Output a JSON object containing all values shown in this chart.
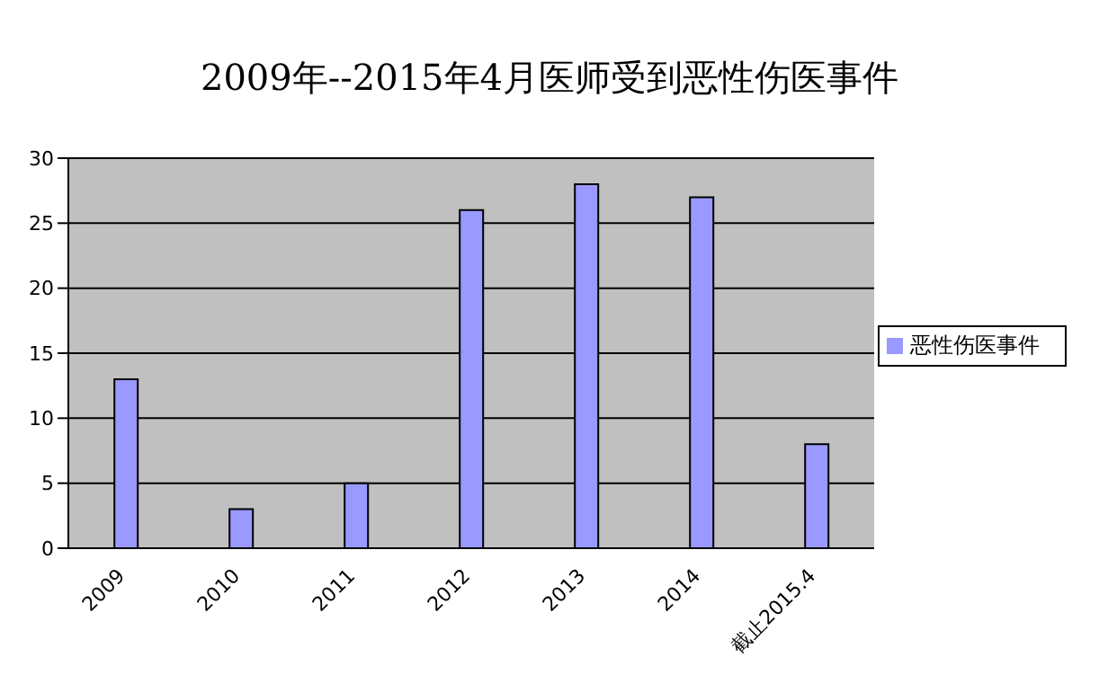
{
  "chart_data": {
    "type": "bar",
    "title": "2009年--2015年4月医师受到恶性伤医事件",
    "categories": [
      "2009",
      "2010",
      "2011",
      "2012",
      "2013",
      "2014",
      "截止2015.4"
    ],
    "series": [
      {
        "name": "恶性伤医事件",
        "color": "#9999ff",
        "values": [
          13,
          3,
          5,
          26,
          28,
          27,
          8
        ]
      }
    ],
    "ylim": [
      0,
      30
    ],
    "yticks": [
      0,
      5,
      10,
      15,
      20,
      25,
      30
    ],
    "grid": "y",
    "legend": "right"
  }
}
